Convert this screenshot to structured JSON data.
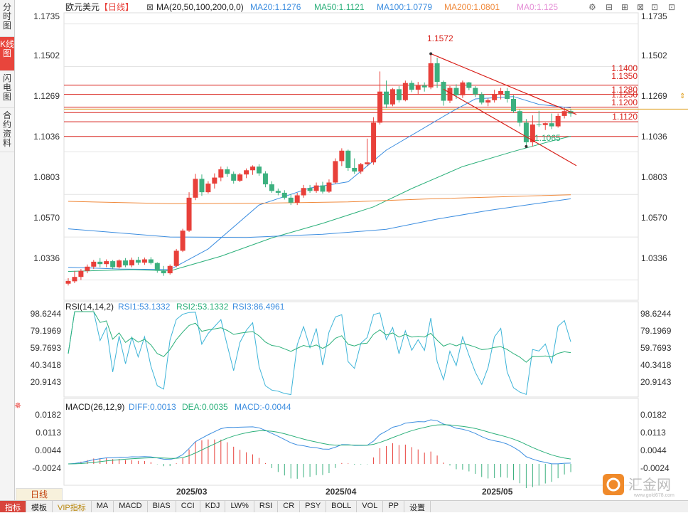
{
  "sidebar": {
    "tabs": [
      {
        "label": "分时图",
        "active": false
      },
      {
        "label": "K线图",
        "active": true
      },
      {
        "label": "闪电图",
        "active": false
      },
      {
        "label": "合约资料",
        "active": false
      }
    ]
  },
  "header": {
    "instrument": "欧元美元",
    "period_tag": "【日线】",
    "ma_label": "MA(20,50,100,200,0,0)",
    "ma_values": [
      {
        "text": "MA20:1.1276",
        "color": "#3d8ee0"
      },
      {
        "text": "MA50:1.1121",
        "color": "#2bb07a"
      },
      {
        "text": "MA100:1.0779",
        "color": "#3d8ee0"
      },
      {
        "text": "MA200:1.0801",
        "color": "#f08a3c"
      },
      {
        "text": "MA0:1.125",
        "color": "#e58fd6"
      }
    ]
  },
  "price_axis": {
    "ticks": [
      "1.1735",
      "1.1502",
      "1.1269",
      "1.1036",
      "1.0803",
      "1.0570",
      "1.0336"
    ],
    "current_price": "1.1269"
  },
  "annotations": {
    "high_label": "1.1572",
    "low_label": "1.1065",
    "levels": [
      "1.1400",
      "1.1350",
      "1.1280",
      "1.1250",
      "1.1200",
      "1.1120"
    ]
  },
  "rsi": {
    "label": "RSI(14,14,2)",
    "values": [
      {
        "text": "RSI1:53.1332",
        "color": "#3d8ee0"
      },
      {
        "text": "RSI2:53.1332",
        "color": "#2bb07a"
      },
      {
        "text": "RSI3:86.4961",
        "color": "#3d8ee0"
      }
    ],
    "ticks": [
      "98.6244",
      "79.1969",
      "59.7693",
      "40.3418",
      "20.9143"
    ]
  },
  "macd": {
    "label": "MACD(26,12,9)",
    "values": [
      {
        "text": "DIFF:0.0013",
        "color": "#3d8ee0"
      },
      {
        "text": "DEA:0.0035",
        "color": "#2bb07a"
      },
      {
        "text": "MACD:-0.0044",
        "color": "#3d8ee0"
      }
    ],
    "ticks": [
      "0.0182",
      "0.0113",
      "0.0044",
      "-0.0024"
    ]
  },
  "x_axis": {
    "labels": [
      "2025/03",
      "2025/04",
      "2025/05"
    ]
  },
  "period_button": "日线",
  "bottom_tabs": [
    "指标",
    "模板",
    "VIP指标",
    "MA",
    "MACD",
    "BIAS",
    "CCI",
    "KDJ",
    "LW%",
    "RSI",
    "CR",
    "PSY",
    "BOLL",
    "VOL",
    "PP",
    "设置"
  ],
  "watermark": {
    "text": "汇金网",
    "sub": "www.gold678.com"
  },
  "colors": {
    "up": "#e8403a",
    "down": "#3cb07f",
    "level": "#d8201a",
    "grid": "#e4e4e4"
  },
  "chart_data": {
    "type": "candlestick",
    "title": "欧元美元",
    "ylim": [
      1.024,
      1.178
    ],
    "candles": [
      {
        "o": 1.0315,
        "h": 1.0345,
        "l": 1.0305,
        "c": 1.033
      },
      {
        "o": 1.0328,
        "h": 1.0385,
        "l": 1.0318,
        "c": 1.0352
      },
      {
        "o": 1.0352,
        "h": 1.0395,
        "l": 1.0335,
        "c": 1.0385
      },
      {
        "o": 1.0385,
        "h": 1.042,
        "l": 1.0372,
        "c": 1.0408
      },
      {
        "o": 1.0408,
        "h": 1.0445,
        "l": 1.0395,
        "c": 1.0435
      },
      {
        "o": 1.0435,
        "h": 1.0455,
        "l": 1.0405,
        "c": 1.0422
      },
      {
        "o": 1.0422,
        "h": 1.0448,
        "l": 1.0405,
        "c": 1.0438
      },
      {
        "o": 1.0438,
        "h": 1.0445,
        "l": 1.0395,
        "c": 1.0405
      },
      {
        "o": 1.0405,
        "h": 1.0448,
        "l": 1.0398,
        "c": 1.0442
      },
      {
        "o": 1.0442,
        "h": 1.0455,
        "l": 1.0405,
        "c": 1.0415
      },
      {
        "o": 1.0415,
        "h": 1.0458,
        "l": 1.0405,
        "c": 1.0445
      },
      {
        "o": 1.0445,
        "h": 1.0462,
        "l": 1.0418,
        "c": 1.043
      },
      {
        "o": 1.043,
        "h": 1.0458,
        "l": 1.0418,
        "c": 1.0448
      },
      {
        "o": 1.0448,
        "h": 1.046,
        "l": 1.042,
        "c": 1.0428
      },
      {
        "o": 1.0428,
        "h": 1.0432,
        "l": 1.0375,
        "c": 1.0388
      },
      {
        "o": 1.0388,
        "h": 1.0412,
        "l": 1.0358,
        "c": 1.0372
      },
      {
        "o": 1.0372,
        "h": 1.042,
        "l": 1.0365,
        "c": 1.0412
      },
      {
        "o": 1.0412,
        "h": 1.0505,
        "l": 1.0405,
        "c": 1.0495
      },
      {
        "o": 1.0495,
        "h": 1.0615,
        "l": 1.0488,
        "c": 1.0605
      },
      {
        "o": 1.0605,
        "h": 1.0815,
        "l": 1.0598,
        "c": 1.0785
      },
      {
        "o": 1.0785,
        "h": 1.0915,
        "l": 1.0772,
        "c": 1.0888
      },
      {
        "o": 1.0888,
        "h": 1.0912,
        "l": 1.0795,
        "c": 1.0815
      },
      {
        "o": 1.0815,
        "h": 1.0875,
        "l": 1.0808,
        "c": 1.0862
      },
      {
        "o": 1.0862,
        "h": 1.0918,
        "l": 1.0835,
        "c": 1.0895
      },
      {
        "o": 1.0895,
        "h": 1.0955,
        "l": 1.0875,
        "c": 1.094
      },
      {
        "o": 1.094,
        "h": 1.0955,
        "l": 1.0898,
        "c": 1.0915
      },
      {
        "o": 1.0915,
        "h": 1.0928,
        "l": 1.0862,
        "c": 1.0878
      },
      {
        "o": 1.0878,
        "h": 1.092,
        "l": 1.087,
        "c": 1.0912
      },
      {
        "o": 1.0912,
        "h": 1.0945,
        "l": 1.0892,
        "c": 1.0935
      },
      {
        "o": 1.0935,
        "h": 1.0962,
        "l": 1.091,
        "c": 1.0955
      },
      {
        "o": 1.0955,
        "h": 1.0968,
        "l": 1.0905,
        "c": 1.0918
      },
      {
        "o": 1.0918,
        "h": 1.093,
        "l": 1.0842,
        "c": 1.0858
      },
      {
        "o": 1.0858,
        "h": 1.0875,
        "l": 1.0812,
        "c": 1.0822
      },
      {
        "o": 1.0822,
        "h": 1.0835,
        "l": 1.0798,
        "c": 1.0812
      },
      {
        "o": 1.0812,
        "h": 1.0826,
        "l": 1.0775,
        "c": 1.0785
      },
      {
        "o": 1.0785,
        "h": 1.0805,
        "l": 1.0745,
        "c": 1.0758
      },
      {
        "o": 1.0758,
        "h": 1.0812,
        "l": 1.0745,
        "c": 1.0798
      },
      {
        "o": 1.0798,
        "h": 1.0855,
        "l": 1.0785,
        "c": 1.0838
      },
      {
        "o": 1.0838,
        "h": 1.0855,
        "l": 1.0812,
        "c": 1.0822
      },
      {
        "o": 1.0822,
        "h": 1.0868,
        "l": 1.0812,
        "c": 1.0852
      },
      {
        "o": 1.0852,
        "h": 1.0872,
        "l": 1.0808,
        "c": 1.0818
      },
      {
        "o": 1.0818,
        "h": 1.0885,
        "l": 1.0812,
        "c": 1.0868
      },
      {
        "o": 1.0868,
        "h": 1.1,
        "l": 1.0862,
        "c": 1.0985
      },
      {
        "o": 1.0985,
        "h": 1.1055,
        "l": 1.0958,
        "c": 1.1042
      },
      {
        "o": 1.1042,
        "h": 1.1048,
        "l": 1.0932,
        "c": 1.0948
      },
      {
        "o": 1.0948,
        "h": 1.1,
        "l": 1.0915,
        "c": 1.0928
      },
      {
        "o": 1.0928,
        "h": 1.0975,
        "l": 1.0915,
        "c": 1.0968
      },
      {
        "o": 1.0968,
        "h": 1.1108,
        "l": 1.0958,
        "c": 1.0978
      },
      {
        "o": 1.0978,
        "h": 1.1225,
        "l": 1.0965,
        "c": 1.1195
      },
      {
        "o": 1.1195,
        "h": 1.1475,
        "l": 1.1185,
        "c": 1.1365
      },
      {
        "o": 1.1365,
        "h": 1.1425,
        "l": 1.1275,
        "c": 1.1295
      },
      {
        "o": 1.1295,
        "h": 1.1385,
        "l": 1.1285,
        "c": 1.1378
      },
      {
        "o": 1.1378,
        "h": 1.1395,
        "l": 1.1305,
        "c": 1.1318
      },
      {
        "o": 1.1318,
        "h": 1.1425,
        "l": 1.1312,
        "c": 1.1412
      },
      {
        "o": 1.1412,
        "h": 1.1425,
        "l": 1.1362,
        "c": 1.1375
      },
      {
        "o": 1.1375,
        "h": 1.1418,
        "l": 1.135,
        "c": 1.1398
      },
      {
        "o": 1.1398,
        "h": 1.1415,
        "l": 1.1365,
        "c": 1.1388
      },
      {
        "o": 1.1388,
        "h": 1.1572,
        "l": 1.1378,
        "c": 1.152
      },
      {
        "o": 1.152,
        "h": 1.155,
        "l": 1.1385,
        "c": 1.1418
      },
      {
        "o": 1.1418,
        "h": 1.1425,
        "l": 1.1288,
        "c": 1.1315
      },
      {
        "o": 1.1315,
        "h": 1.1395,
        "l": 1.1302,
        "c": 1.1385
      },
      {
        "o": 1.1385,
        "h": 1.1405,
        "l": 1.1325,
        "c": 1.1345
      },
      {
        "o": 1.1345,
        "h": 1.1425,
        "l": 1.133,
        "c": 1.1415
      },
      {
        "o": 1.1415,
        "h": 1.1418,
        "l": 1.1372,
        "c": 1.1385
      },
      {
        "o": 1.1385,
        "h": 1.1395,
        "l": 1.1335,
        "c": 1.135
      },
      {
        "o": 1.135,
        "h": 1.1362,
        "l": 1.1295,
        "c": 1.1305
      },
      {
        "o": 1.1305,
        "h": 1.1328,
        "l": 1.1285,
        "c": 1.1318
      },
      {
        "o": 1.1318,
        "h": 1.1375,
        "l": 1.1305,
        "c": 1.1352
      },
      {
        "o": 1.1352,
        "h": 1.1385,
        "l": 1.1322,
        "c": 1.1368
      },
      {
        "o": 1.1368,
        "h": 1.1385,
        "l": 1.1305,
        "c": 1.1325
      },
      {
        "o": 1.1325,
        "h": 1.1345,
        "l": 1.1248,
        "c": 1.1258
      },
      {
        "o": 1.1258,
        "h": 1.1268,
        "l": 1.1175,
        "c": 1.1195
      },
      {
        "o": 1.1195,
        "h": 1.1215,
        "l": 1.1065,
        "c": 1.1088
      },
      {
        "o": 1.1088,
        "h": 1.1235,
        "l": 1.1065,
        "c": 1.1185
      },
      {
        "o": 1.1185,
        "h": 1.126,
        "l": 1.1172,
        "c": 1.1182
      },
      {
        "o": 1.1182,
        "h": 1.1195,
        "l": 1.1155,
        "c": 1.1192
      },
      {
        "o": 1.1192,
        "h": 1.1245,
        "l": 1.116,
        "c": 1.1175
      },
      {
        "o": 1.1175,
        "h": 1.1245,
        "l": 1.1168,
        "c": 1.1232
      },
      {
        "o": 1.1232,
        "h": 1.1278,
        "l": 1.1218,
        "c": 1.1258
      },
      {
        "o": 1.1258,
        "h": 1.127,
        "l": 1.1228,
        "c": 1.1245
      }
    ],
    "ma_lines": [
      {
        "name": "MA20",
        "color": "#3d8ee0",
        "points": [
          [
            0,
            1.0405
          ],
          [
            8,
            1.0395
          ],
          [
            16,
            1.0392
          ],
          [
            22,
            1.0505
          ],
          [
            30,
            1.0745
          ],
          [
            38,
            1.0838
          ],
          [
            44,
            1.0872
          ],
          [
            50,
            1.1045
          ],
          [
            56,
            1.1168
          ],
          [
            60,
            1.125
          ],
          [
            64,
            1.1325
          ],
          [
            70,
            1.1338
          ],
          [
            74,
            1.1295
          ],
          [
            79,
            1.1276
          ]
        ]
      },
      {
        "name": "MA50",
        "color": "#2bb07a",
        "points": [
          [
            0,
            1.0382
          ],
          [
            10,
            1.0392
          ],
          [
            16,
            1.0385
          ],
          [
            24,
            1.0465
          ],
          [
            32,
            1.0565
          ],
          [
            40,
            1.0645
          ],
          [
            48,
            1.0735
          ],
          [
            54,
            1.0835
          ],
          [
            62,
            1.0955
          ],
          [
            70,
            1.1038
          ],
          [
            76,
            1.1095
          ],
          [
            79,
            1.1121
          ]
        ]
      },
      {
        "name": "MA100",
        "color": "#3d8ee0",
        "points": [
          [
            0,
            1.0615
          ],
          [
            6,
            1.0598
          ],
          [
            16,
            1.057
          ],
          [
            28,
            1.0568
          ],
          [
            40,
            1.0585
          ],
          [
            50,
            1.0612
          ],
          [
            58,
            1.0668
          ],
          [
            66,
            1.0715
          ],
          [
            74,
            1.0755
          ],
          [
            79,
            1.0779
          ]
        ]
      },
      {
        "name": "MA200",
        "color": "#f08a3c",
        "points": [
          [
            0,
            1.0765
          ],
          [
            16,
            1.0752
          ],
          [
            30,
            1.0755
          ],
          [
            44,
            1.0762
          ],
          [
            56,
            1.0778
          ],
          [
            66,
            1.0788
          ],
          [
            74,
            1.0796
          ],
          [
            79,
            1.0801
          ]
        ]
      }
    ],
    "levels": [
      1.14,
      1.135,
      1.128,
      1.125,
      1.12,
      1.112
    ],
    "trendlines": [
      {
        "from": [
          57,
          1.1572
        ],
        "to": [
          79,
          1.124
        ]
      },
      {
        "from": [
          59,
          1.1378
        ],
        "to": [
          79,
          1.096
        ]
      }
    ]
  }
}
